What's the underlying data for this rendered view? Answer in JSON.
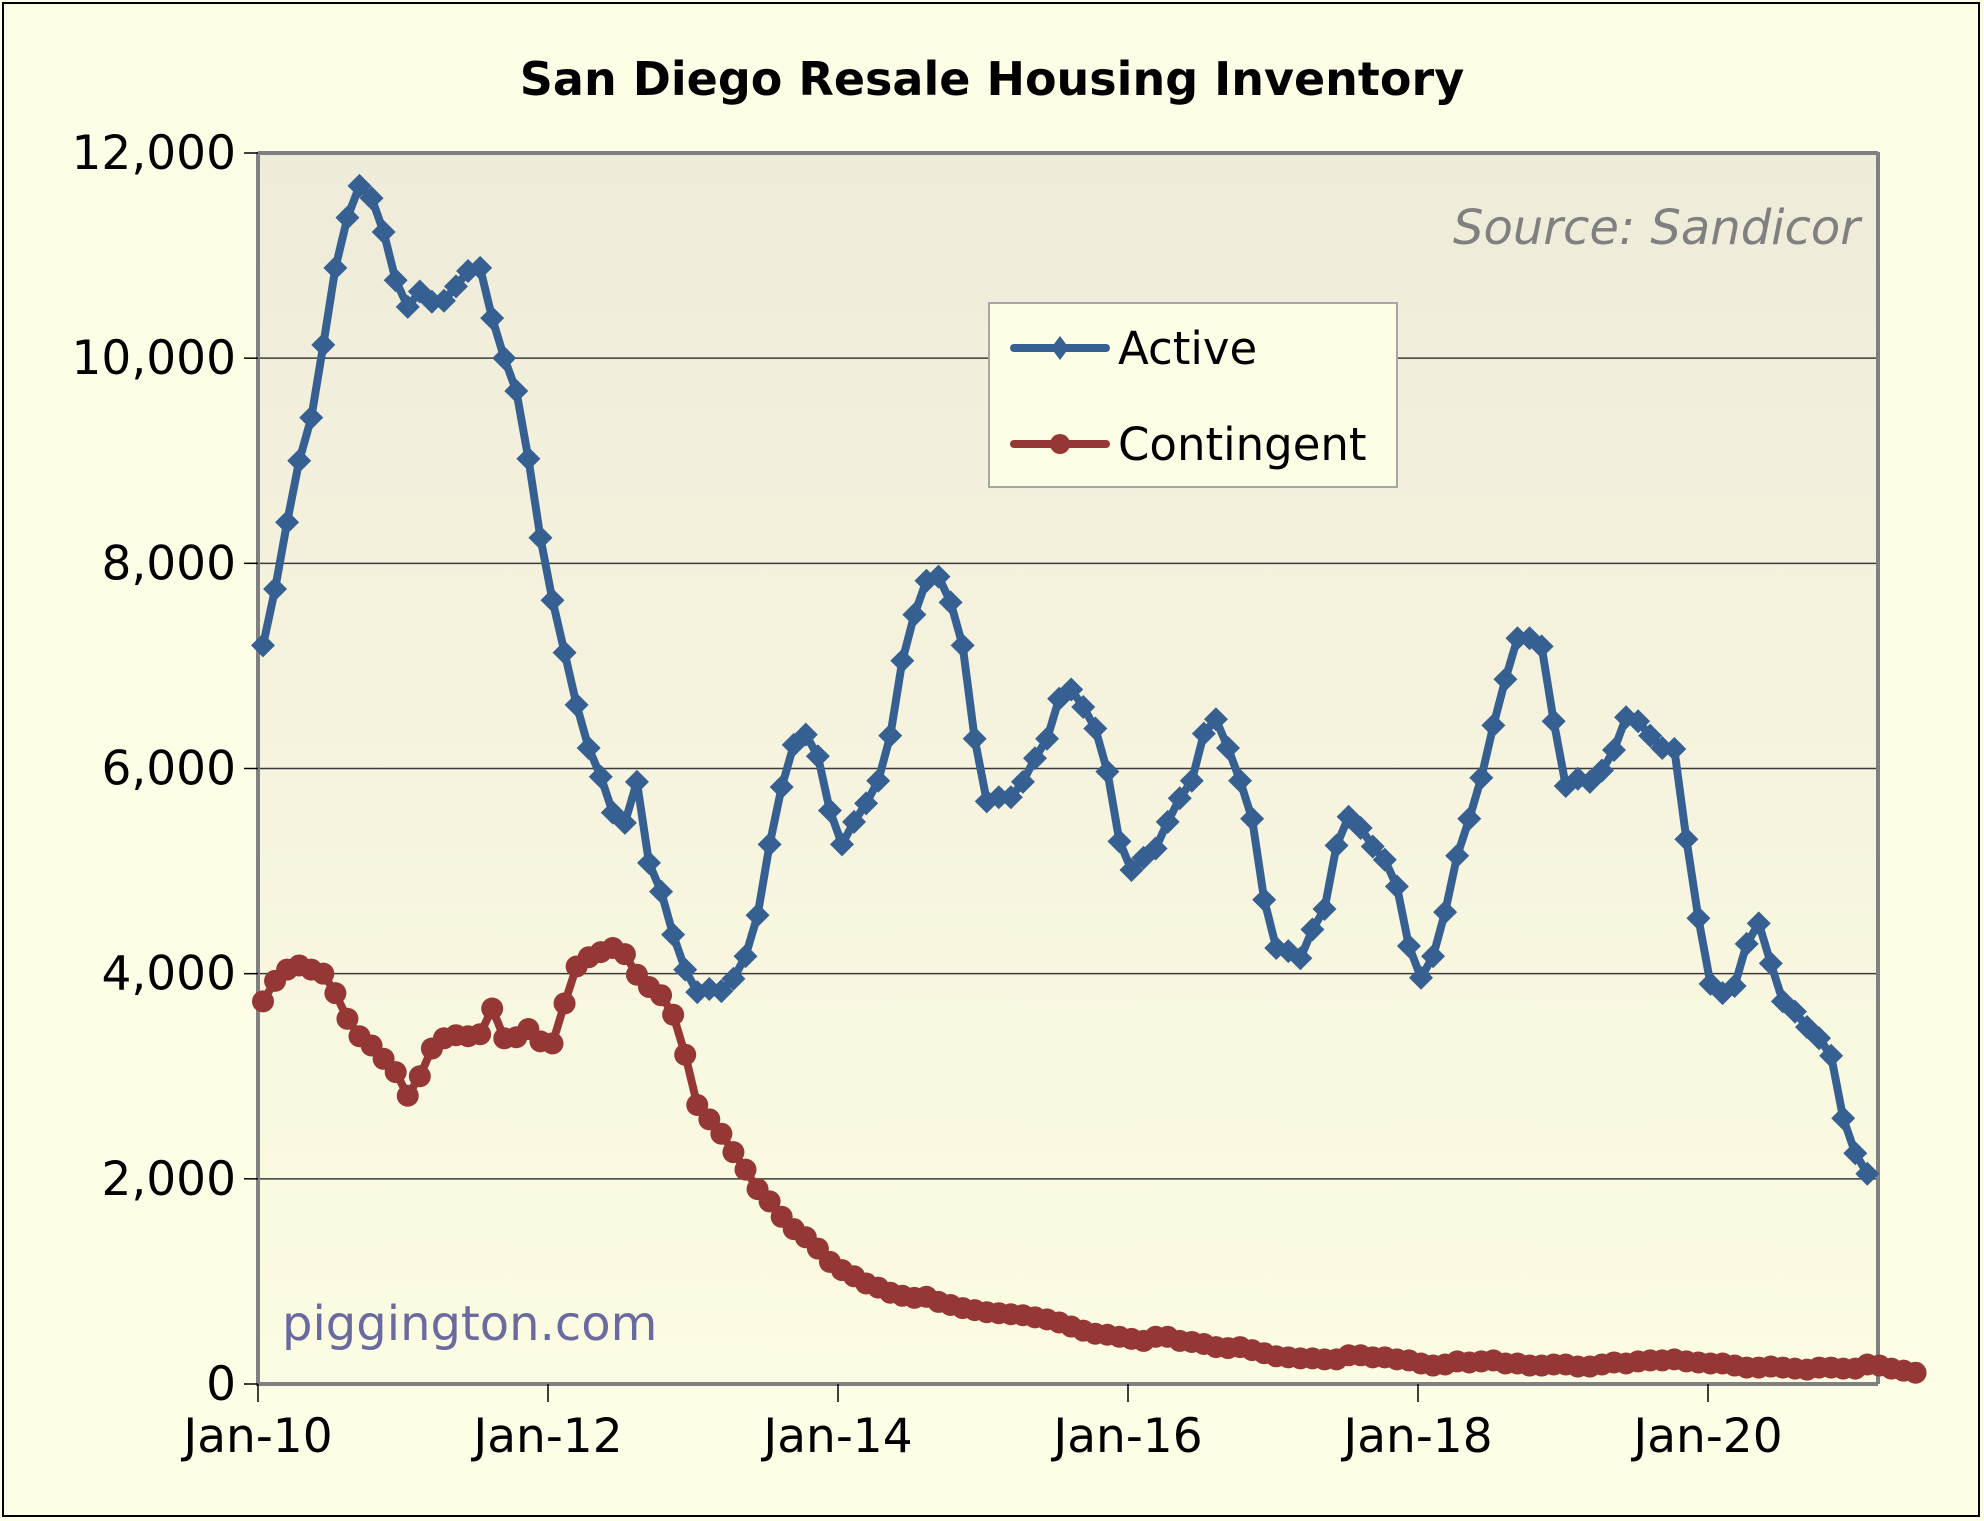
{
  "chart_data": {
    "type": "line",
    "title": "San Diego Resale Housing Inventory",
    "xlabel": "",
    "ylabel": "",
    "ylim": [
      0,
      12000
    ],
    "yticks": [
      0,
      2000,
      4000,
      6000,
      8000,
      10000,
      12000
    ],
    "ytick_labels": [
      "0",
      "2,000",
      "4,000",
      "6,000",
      "8,000",
      "10,000",
      "12,000"
    ],
    "xtick_labels": [
      "Jan-10",
      "Jan-12",
      "Jan-14",
      "Jan-16",
      "Jan-18",
      "Jan-20"
    ],
    "x_start": "Jan-10",
    "x_interval": "monthly",
    "grid": "horizontal",
    "legend_position": "top-center",
    "annotations": [
      "Source: Sandicor",
      "piggington.com"
    ],
    "series": [
      {
        "name": "Active",
        "color": "#376092",
        "marker": "diamond",
        "values": [
          7200,
          7750,
          8400,
          9000,
          9420,
          10130,
          10880,
          11370,
          11680,
          11560,
          11230,
          10760,
          10500,
          10650,
          10550,
          10560,
          10700,
          10850,
          10880,
          10390,
          10000,
          9680,
          9020,
          8250,
          7640,
          7130,
          6620,
          6200,
          5920,
          5570,
          5470,
          5870,
          5080,
          4800,
          4380,
          4040,
          3820,
          3850,
          3830,
          3950,
          4170,
          4570,
          5260,
          5820,
          6230,
          6330,
          6120,
          5590,
          5260,
          5480,
          5660,
          5880,
          6320,
          7050,
          7500,
          7830,
          7870,
          7620,
          7200,
          6290,
          5680,
          5720,
          5720,
          5870,
          6100,
          6290,
          6680,
          6770,
          6600,
          6390,
          5970,
          5290,
          5010,
          5130,
          5220,
          5480,
          5710,
          5880,
          6340,
          6480,
          6200,
          5880,
          5510,
          4720,
          4250,
          4220,
          4150,
          4430,
          4630,
          5250,
          5530,
          5420,
          5240,
          5110,
          4850,
          4270,
          3960,
          4170,
          4600,
          5150,
          5510,
          5910,
          6420,
          6870,
          7270,
          7270,
          7190,
          6460,
          5830,
          5900,
          5870,
          5980,
          6180,
          6500,
          6460,
          6320,
          6200,
          6190,
          5310,
          4540,
          3900,
          3810,
          3880,
          4290,
          4490,
          4100,
          3730,
          3630,
          3480,
          3370,
          3200,
          2590,
          2250,
          2050
        ]
      },
      {
        "name": "Contingent",
        "color": "#953735",
        "marker": "circle",
        "values": [
          3730,
          3930,
          4040,
          4080,
          4040,
          4000,
          3810,
          3560,
          3390,
          3300,
          3170,
          3040,
          2810,
          3000,
          3270,
          3370,
          3400,
          3390,
          3410,
          3660,
          3370,
          3380,
          3460,
          3340,
          3320,
          3710,
          4070,
          4160,
          4210,
          4250,
          4190,
          3990,
          3870,
          3790,
          3600,
          3210,
          2720,
          2580,
          2440,
          2260,
          2090,
          1900,
          1780,
          1630,
          1510,
          1430,
          1320,
          1190,
          1110,
          1050,
          980,
          940,
          890,
          860,
          840,
          850,
          800,
          770,
          740,
          720,
          700,
          690,
          680,
          670,
          650,
          630,
          600,
          560,
          520,
          490,
          480,
          460,
          440,
          420,
          460,
          460,
          420,
          410,
          390,
          360,
          350,
          360,
          330,
          300,
          270,
          260,
          250,
          250,
          240,
          240,
          280,
          280,
          260,
          260,
          240,
          230,
          200,
          180,
          190,
          220,
          210,
          220,
          230,
          200,
          200,
          180,
          180,
          190,
          190,
          170,
          170,
          190,
          210,
          200,
          220,
          230,
          230,
          240,
          220,
          210,
          200,
          200,
          180,
          160,
          160,
          170,
          160,
          150,
          140,
          160,
          160,
          150,
          150,
          190,
          180,
          150,
          130,
          110
        ]
      }
    ]
  }
}
